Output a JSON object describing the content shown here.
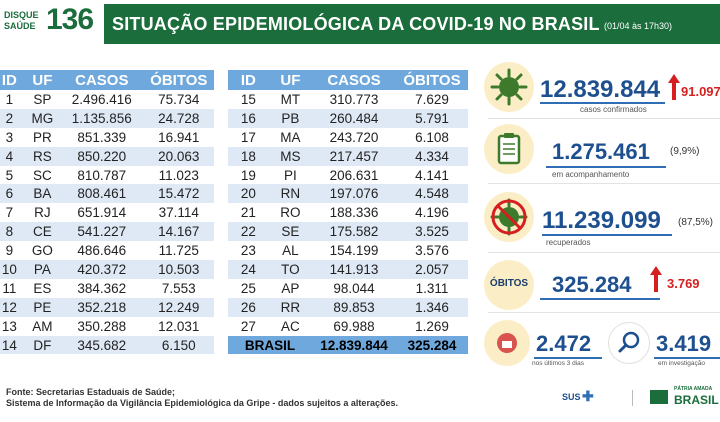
{
  "header": {
    "logo_top": "DISQUE",
    "logo_bottom": "SAÚDE",
    "logo_number": "136",
    "title": "SITUAÇÃO EPIDEMIOLÓGICA DA COVID-19 NO BRASIL",
    "date": "(01/04 às 17h30)"
  },
  "table": {
    "columns": [
      "ID",
      "UF",
      "CASOS",
      "ÓBITOS"
    ],
    "left_rows": [
      [
        "1",
        "SP",
        "2.496.416",
        "75.734"
      ],
      [
        "2",
        "MG",
        "1.135.856",
        "24.728"
      ],
      [
        "3",
        "PR",
        "851.339",
        "16.941"
      ],
      [
        "4",
        "RS",
        "850.220",
        "20.063"
      ],
      [
        "5",
        "SC",
        "810.787",
        "11.023"
      ],
      [
        "6",
        "BA",
        "808.461",
        "15.472"
      ],
      [
        "7",
        "RJ",
        "651.914",
        "37.114"
      ],
      [
        "8",
        "CE",
        "541.227",
        "14.167"
      ],
      [
        "9",
        "GO",
        "486.646",
        "11.725"
      ],
      [
        "10",
        "PA",
        "420.372",
        "10.503"
      ],
      [
        "11",
        "ES",
        "384.362",
        "7.553"
      ],
      [
        "12",
        "PE",
        "352.218",
        "12.249"
      ],
      [
        "13",
        "AM",
        "350.288",
        "12.031"
      ],
      [
        "14",
        "DF",
        "345.682",
        "6.150"
      ]
    ],
    "right_rows": [
      [
        "15",
        "MT",
        "310.773",
        "7.629"
      ],
      [
        "16",
        "PB",
        "260.484",
        "5.791"
      ],
      [
        "17",
        "MA",
        "243.720",
        "6.108"
      ],
      [
        "18",
        "MS",
        "217.457",
        "4.334"
      ],
      [
        "19",
        "PI",
        "206.631",
        "4.141"
      ],
      [
        "20",
        "RN",
        "197.076",
        "4.548"
      ],
      [
        "21",
        "RO",
        "188.336",
        "4.196"
      ],
      [
        "22",
        "SE",
        "175.582",
        "3.525"
      ],
      [
        "23",
        "AL",
        "154.199",
        "3.576"
      ],
      [
        "24",
        "TO",
        "141.913",
        "2.057"
      ],
      [
        "25",
        "AP",
        "98.044",
        "1.311"
      ],
      [
        "26",
        "RR",
        "89.853",
        "1.346"
      ],
      [
        "27",
        "AC",
        "69.988",
        "1.269"
      ]
    ],
    "total": {
      "label": "BRASIL",
      "casos": "12.839.844",
      "obitos": "325.284"
    }
  },
  "summary": {
    "confirmed": {
      "value": "12.839.844",
      "delta": "91.097",
      "label": "casos confirmados",
      "icon": "virus-icon"
    },
    "monitoring": {
      "value": "1.275.461",
      "pct": "(9,9%)",
      "label": "em acompanhamento",
      "icon": "clipboard-icon"
    },
    "recovered": {
      "value": "11.239.099",
      "pct": "(87,5%)",
      "label": "recuperados",
      "icon": "recovered-virus-icon"
    },
    "deaths": {
      "badge": "ÓBITOS",
      "value": "325.284",
      "delta": "3.769"
    },
    "last3days": {
      "value": "2.472",
      "label": "nos últimos 3 dias",
      "icon": "calendar-icon"
    },
    "investigation": {
      "value": "3.419",
      "label": "em investigação",
      "icon": "magnifier-icon"
    }
  },
  "footer": {
    "line1": "Fonte: Secretarias Estaduais de Saúde;",
    "line2": "Sistema de Informação da Vigilância Epidemiológica da Gripe - dados sujeitos a alterações."
  },
  "logos": {
    "sus": "SUS",
    "brasil": "BRASIL",
    "patria": "PÁTRIA AMADA"
  },
  "colors": {
    "green": "#1b6d3c",
    "blue_header": "#6fa8dc",
    "row_stripe": "#dfe9f5",
    "number_blue": "#1e4f8f",
    "alert_red": "#d62020"
  }
}
